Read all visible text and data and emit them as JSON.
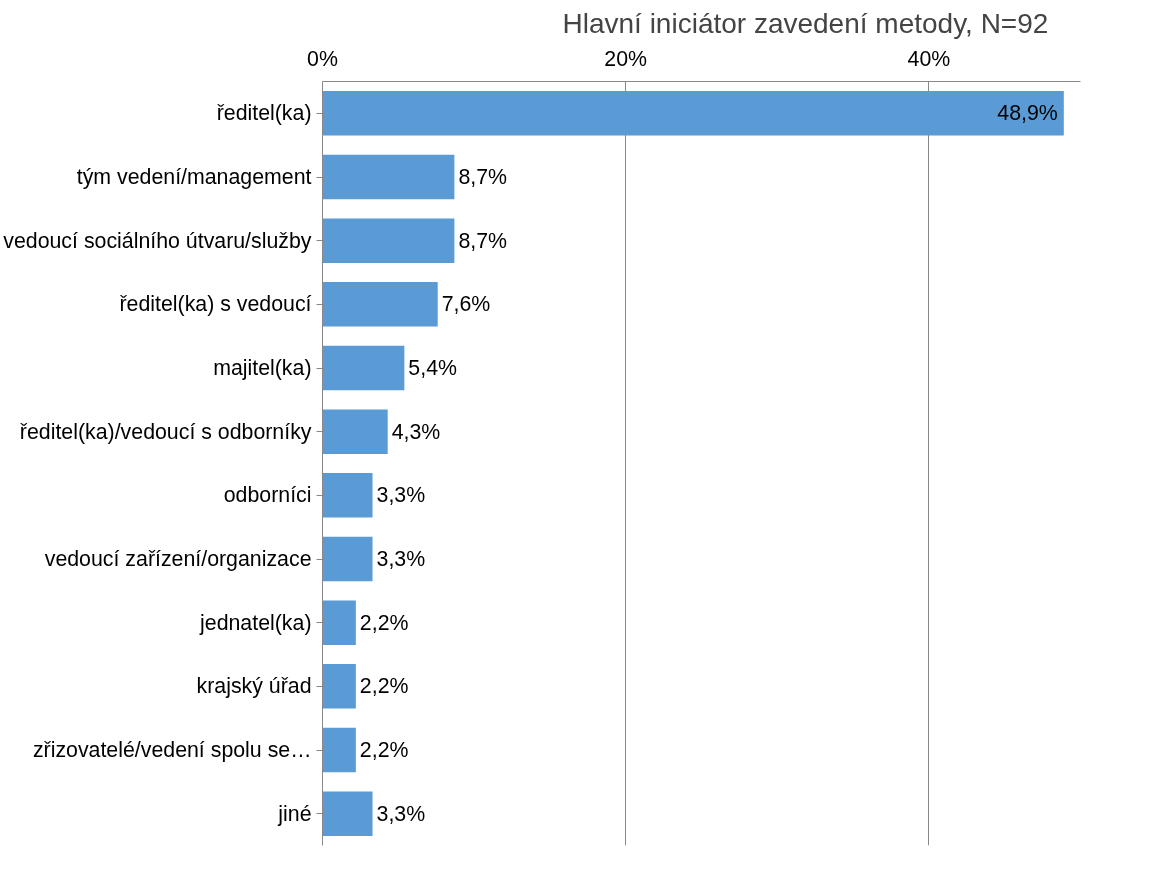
{
  "chart_data": {
    "type": "bar",
    "orientation": "horizontal",
    "title": "Hlavní iniciátor zavedení metody, N=92",
    "categories": [
      "ředitel(ka)",
      "tým vedení/management",
      "vedoucí sociálního útvaru/služby",
      "ředitel(ka) s vedoucí",
      "majitel(ka)",
      "ředitel(ka)/vedoucí s odborníky",
      "odborníci",
      "vedoucí zařízení/organizace",
      "jednatel(ka)",
      "krajský úřad",
      "zřizovatelé/vedení spolu se…",
      "jiné"
    ],
    "values": [
      48.9,
      8.7,
      8.7,
      7.6,
      5.4,
      4.3,
      3.3,
      3.3,
      2.2,
      2.2,
      2.2,
      3.3
    ],
    "value_labels": [
      "48,9%",
      "8,7%",
      "8,7%",
      "7,6%",
      "5,4%",
      "4,3%",
      "3,3%",
      "3,3%",
      "2,2%",
      "2,2%",
      "2,2%",
      "3,3%"
    ],
    "color": "#5b9bd5",
    "xlim": [
      0,
      50
    ],
    "xticks": [
      {
        "value": 0,
        "label": "0%"
      },
      {
        "value": 20,
        "label": "20%"
      },
      {
        "value": 40,
        "label": "40%"
      }
    ],
    "grid": "x"
  }
}
